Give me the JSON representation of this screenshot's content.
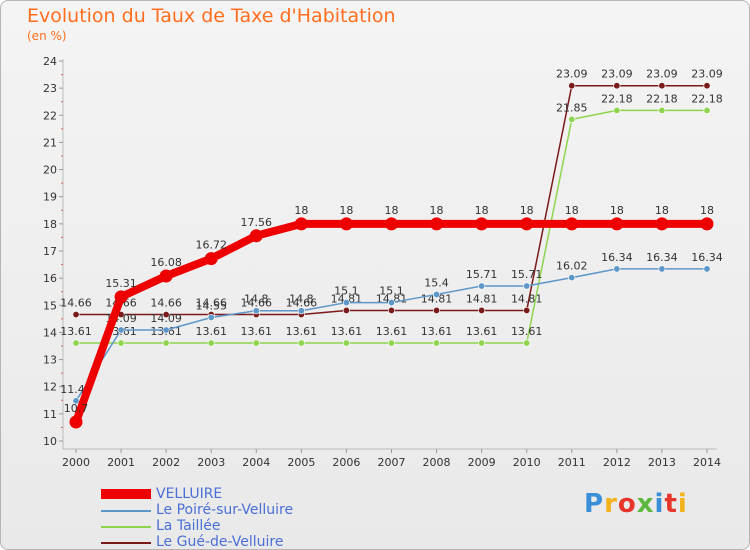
{
  "title": "Evolution du Taux de Taxe d'Habitation",
  "subtitle": "(en %)",
  "logo": {
    "text": "Proxiti",
    "colors": [
      "#3a8fd8",
      "#f2b21b",
      "#e8352c",
      "#5cb83d",
      "#3a8fd8",
      "#e8352c",
      "#f2b21b"
    ]
  },
  "chart_data": {
    "type": "line",
    "title": "Evolution du Taux de Taxe d'Habitation",
    "ylabel": "(en %)",
    "xlabel": "",
    "x": [
      "2000",
      "2001",
      "2002",
      "2003",
      "2004",
      "2005",
      "2006",
      "2007",
      "2008",
      "2009",
      "2010",
      "2011",
      "2012",
      "2013",
      "2014"
    ],
    "ylim": [
      10,
      24
    ],
    "yticks": [
      10,
      11,
      12,
      13,
      14,
      15,
      16,
      17,
      18,
      19,
      20,
      21,
      22,
      23,
      24
    ],
    "grid": false,
    "legend": "bottom-left",
    "series": [
      {
        "name": "Le Gué-de-Velluire",
        "color": "#7a1a1a",
        "values": [
          14.66,
          14.66,
          14.66,
          14.66,
          14.66,
          14.66,
          14.81,
          14.81,
          14.81,
          14.81,
          14.81,
          23.09,
          23.09,
          23.09,
          23.09
        ],
        "labels": [
          "14.66",
          "14.66",
          "14.66",
          "14.66",
          "14.66",
          "14.66",
          "14.81",
          "14.81",
          "14.81",
          "14.81",
          "14.81",
          "23.09",
          "23.09",
          "23.09",
          "23.09"
        ]
      },
      {
        "name": "La Taillée",
        "color": "#8fd44f",
        "values": [
          13.61,
          13.61,
          13.61,
          13.61,
          13.61,
          13.61,
          13.61,
          13.61,
          13.61,
          13.61,
          13.61,
          21.85,
          22.18,
          22.18,
          22.18
        ],
        "labels": [
          "13.61",
          "13.61",
          "13.61",
          "13.61",
          "13.61",
          "13.61",
          "13.61",
          "13.61",
          "13.61",
          "13.61",
          "13.61",
          "21.85",
          "22.18",
          "22.18",
          "22.18"
        ]
      },
      {
        "name": "Le Poiré-sur-Velluire",
        "color": "#5d96c8",
        "values": [
          11.48,
          14.09,
          14.09,
          14.55,
          14.8,
          14.8,
          15.1,
          15.1,
          15.4,
          15.71,
          15.71,
          16.02,
          16.34,
          16.34,
          16.34
        ],
        "labels": [
          "11.48",
          "14.09",
          "14.09",
          "14.55",
          "14.8",
          "14.8",
          "15.1",
          "15.1",
          "15.4",
          "15.71",
          "15.71",
          "16.02",
          "16.34",
          "16.34",
          "16.34"
        ]
      },
      {
        "name": "VELLUIRE",
        "color": "#ee0000",
        "values": [
          10.7,
          15.31,
          16.08,
          16.72,
          17.56,
          18,
          18,
          18,
          18,
          18,
          18,
          18,
          18,
          18,
          18
        ],
        "labels": [
          "10.7",
          "15.31",
          "16.08",
          "16.72",
          "17.56",
          "18",
          "18",
          "18",
          "18",
          "18",
          "18",
          "18",
          "18",
          "18",
          "18"
        ]
      }
    ],
    "legend_order": [
      "VELLUIRE",
      "Le Poiré-sur-Velluire",
      "La Taillée",
      "Le Gué-de-Velluire"
    ]
  }
}
